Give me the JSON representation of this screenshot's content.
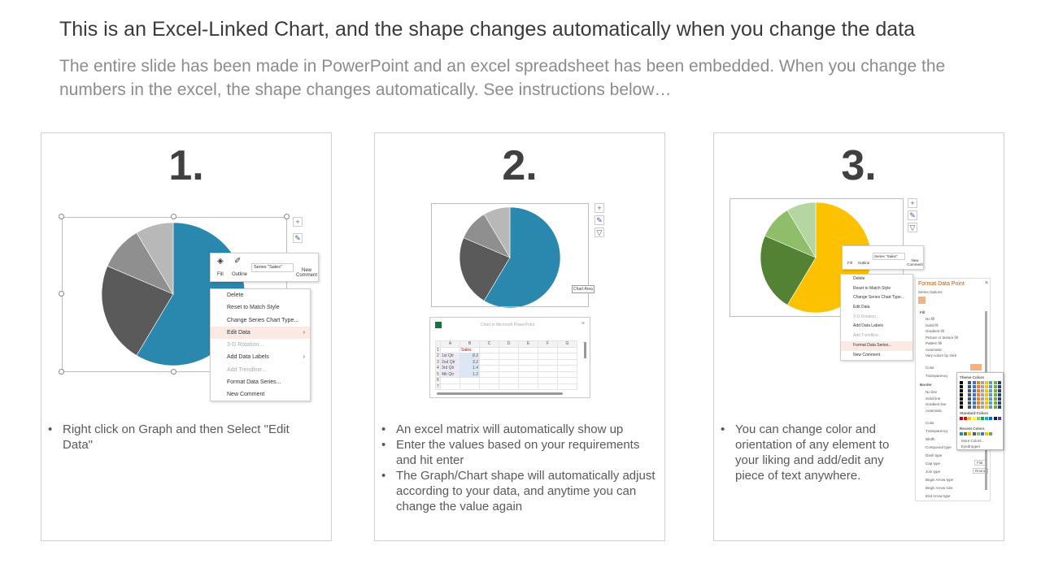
{
  "header": {
    "title": "This is an Excel-Linked Chart, and the shape changes automatically when you change the data",
    "subtitle": "The entire slide has been made in PowerPoint and an excel spreadsheet has been embedded. When you change the numbers in the excel, the shape changes automatically. See instructions below…"
  },
  "steps": [
    {
      "number": "1.",
      "bullets": [
        "Right click on Graph and then Select \"Edit Data\""
      ]
    },
    {
      "number": "2.",
      "bullets": [
        "An excel matrix will automatically show up",
        "Enter the values based on your requirements and hit enter",
        "The Graph/Chart shape will automatically adjust according to your data, and anytime you can change the value again"
      ]
    },
    {
      "number": "3.",
      "bullets": [
        "You can change color and orientation of any element to your liking and add/edit any piece of text anywhere."
      ]
    }
  ],
  "mini_toolbar": {
    "fill": "Fill",
    "outline": "Outline",
    "series": "Series \"Sales\"",
    "new_comment": "New Comment"
  },
  "context_menu": [
    "Delete",
    "Reset to Match Style",
    "Change Series Chart Type...",
    "Edit Data",
    "3-D Rotation...",
    "Add Data Labels",
    "Add Trendline...",
    "Format Data Series...",
    "New Comment"
  ],
  "excel": {
    "title": "Chart in Microsoft PowerPoint",
    "columns": [
      "",
      "A",
      "B",
      "C",
      "D",
      "E",
      "F",
      "G"
    ],
    "rows": [
      [
        "1",
        "",
        "Sales"
      ],
      [
        "2",
        "1st Qtr",
        "8.2"
      ],
      [
        "3",
        "2nd Qtr",
        "3.2"
      ],
      [
        "4",
        "3rd Qtr",
        "1.4"
      ],
      [
        "5",
        "4th Qtr",
        "1.2"
      ],
      [
        "6",
        "",
        ""
      ],
      [
        "7",
        "",
        ""
      ]
    ],
    "tooltip": "Chart Area"
  },
  "format_pane": {
    "title": "Format Data Point",
    "series_options": "Series Options",
    "fill_header": "Fill",
    "fill_options": [
      "No fill",
      "Solid fill",
      "Gradient fill",
      "Picture or texture fill",
      "Pattern fill",
      "Automatic",
      "Vary colors by slice"
    ],
    "color_label": "Color",
    "transparency": "Transparency",
    "border_header": "Border",
    "border_options": [
      "No line",
      "Solid line",
      "Gradient line",
      "Automatic"
    ],
    "more": [
      "Color",
      "Transparency",
      "Width",
      "Compound type",
      "Dash type",
      "Cap type",
      "Join type",
      "Begin Arrow type",
      "Begin Arrow size",
      "End Arrow type"
    ],
    "cap_value": "Flat",
    "join_value": "Round",
    "palette": {
      "theme": "Theme Colors",
      "standard": "Standard Colors",
      "recent": "Recent Colors",
      "more_colors": "More Colors...",
      "eyedropper": "Eyedropper"
    }
  },
  "chart_data": [
    {
      "type": "pie",
      "categories": [
        "1st Qtr",
        "2nd Qtr",
        "3rd Qtr",
        "4th Qtr"
      ],
      "values": [
        8.2,
        3.2,
        1.4,
        1.2
      ],
      "colors": [
        "#2a87ad",
        "#5a5a5a",
        "#8f8f8f",
        "#b8b8b8"
      ]
    },
    {
      "type": "pie",
      "categories": [
        "1st Qtr",
        "2nd Qtr",
        "3rd Qtr",
        "4th Qtr"
      ],
      "values": [
        8.2,
        3.2,
        1.4,
        1.2
      ],
      "colors": [
        "#2a87ad",
        "#5a5a5a",
        "#8f8f8f",
        "#b8b8b8"
      ]
    },
    {
      "type": "pie",
      "categories": [
        "1st Qtr",
        "2nd Qtr",
        "3rd Qtr",
        "4th Qtr"
      ],
      "values": [
        8.2,
        3.2,
        1.4,
        1.2
      ],
      "colors": [
        "#fcc100",
        "#538234",
        "#8fbd6a",
        "#b5d6a0"
      ]
    }
  ]
}
